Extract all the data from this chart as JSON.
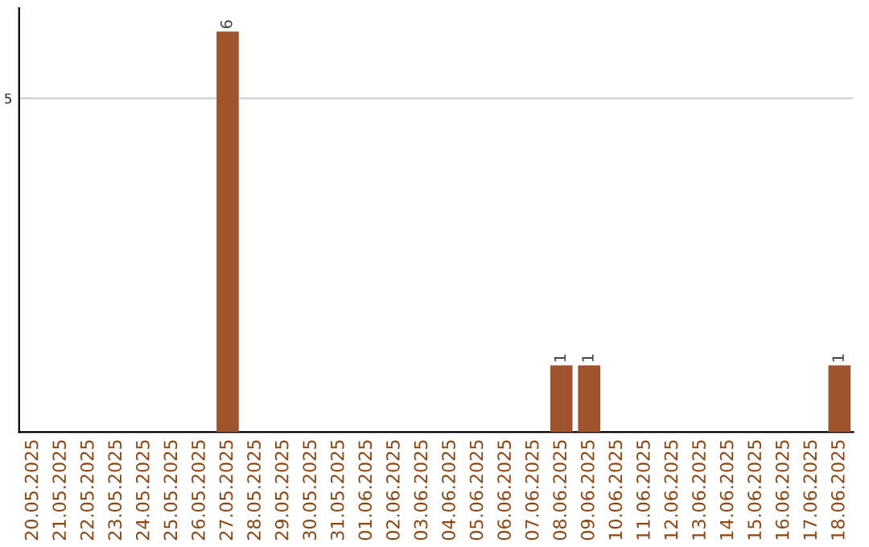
{
  "chart_data": {
    "type": "bar",
    "categories": [
      "20.05.2025",
      "21.05.2025",
      "22.05.2025",
      "23.05.2025",
      "24.05.2025",
      "25.05.2025",
      "26.05.2025",
      "27.05.2025",
      "28.05.2025",
      "29.05.2025",
      "30.05.2025",
      "31.05.2025",
      "01.06.2025",
      "02.06.2025",
      "03.06.2025",
      "04.06.2025",
      "05.06.2025",
      "06.06.2025",
      "07.06.2025",
      "08.06.2025",
      "09.06.2025",
      "10.06.2025",
      "11.06.2025",
      "12.06.2025",
      "13.06.2025",
      "14.06.2025",
      "15.06.2025",
      "16.06.2025",
      "17.06.2025",
      "18.06.2025"
    ],
    "values": [
      0,
      0,
      0,
      0,
      0,
      0,
      0,
      6,
      0,
      0,
      0,
      0,
      0,
      0,
      0,
      0,
      0,
      0,
      0,
      1,
      1,
      0,
      0,
      0,
      0,
      0,
      0,
      0,
      0,
      1
    ],
    "value_labels": [
      null,
      null,
      null,
      null,
      null,
      null,
      null,
      "6",
      null,
      null,
      null,
      null,
      null,
      null,
      null,
      null,
      null,
      null,
      null,
      "1",
      "1",
      null,
      null,
      null,
      null,
      null,
      null,
      null,
      null,
      "1"
    ],
    "color": "#a0522d",
    "ylim": [
      0,
      6.35
    ],
    "yticks": [
      5
    ],
    "grid": "y",
    "legend": false
  }
}
